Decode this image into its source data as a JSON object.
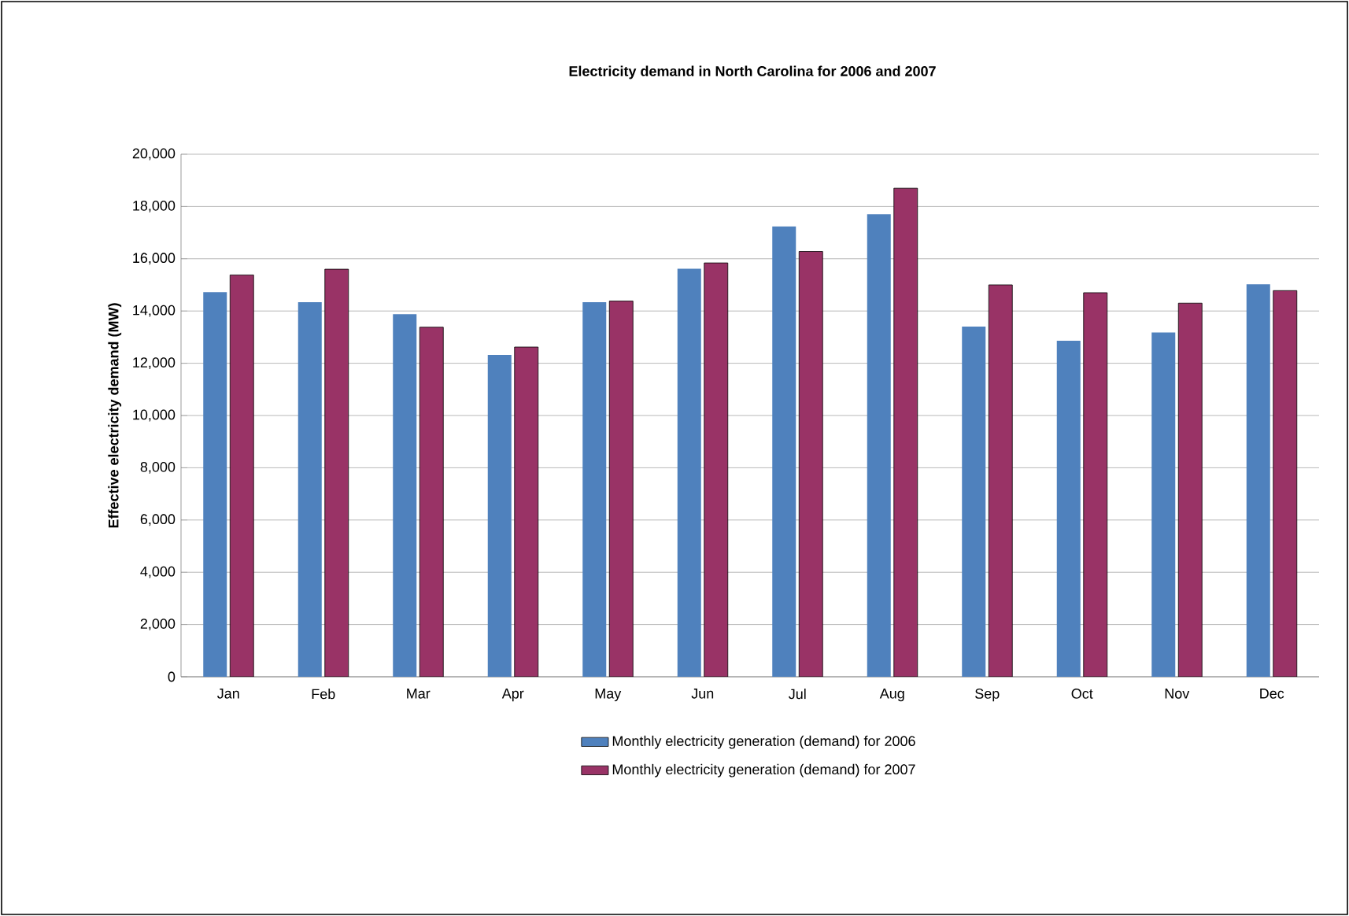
{
  "chart_data": {
    "type": "bar",
    "title": "Electricity demand in North Carolina for 2006 and 2007",
    "ylabel": "Effective electricity demand (MW)",
    "categories": [
      "Jan",
      "Feb",
      "Mar",
      "Apr",
      "May",
      "Jun",
      "Jul",
      "Aug",
      "Sep",
      "Oct",
      "Nov",
      "Dec"
    ],
    "series": [
      {
        "name": "Monthly electricity generation (demand) for 2006",
        "color": "#4f81bd",
        "values": [
          14720,
          14340,
          13880,
          12320,
          14340,
          15620,
          17240,
          17700,
          13400,
          12860,
          13180,
          15020
        ]
      },
      {
        "name": "Monthly electricity generation (demand) for 2007",
        "color": "#993366",
        "values": [
          15380,
          15600,
          13380,
          12620,
          14380,
          15840,
          16280,
          18700,
          15000,
          14700,
          14300,
          14780
        ]
      }
    ],
    "ylim": [
      0,
      20000
    ],
    "yticks": [
      {
        "value": 0,
        "label": "0"
      },
      {
        "value": 2000,
        "label": "2,000"
      },
      {
        "value": 4000,
        "label": "4,000"
      },
      {
        "value": 6000,
        "label": "6,000"
      },
      {
        "value": 8000,
        "label": "8,000"
      },
      {
        "value": 10000,
        "label": "10,000"
      },
      {
        "value": 12000,
        "label": "12,000"
      },
      {
        "value": 14000,
        "label": "14,000"
      },
      {
        "value": 16000,
        "label": "16,000"
      },
      {
        "value": 18000,
        "label": "18,000"
      },
      {
        "value": 20000,
        "label": "20,000"
      }
    ],
    "grid": "y",
    "legend": "bottom"
  }
}
